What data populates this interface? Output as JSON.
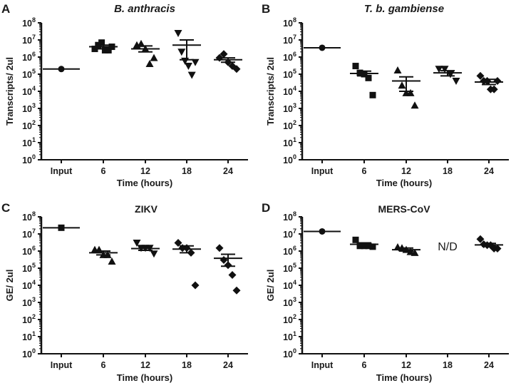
{
  "chart_data": [
    {
      "type": "scatter",
      "panel": "A",
      "title": "B. anthracis",
      "title_italic": true,
      "ylabel": "Transcripts/ 2ul",
      "xlabel": "Time (hours)",
      "categories": [
        "Input",
        "6",
        "12",
        "18",
        "24"
      ],
      "yscale": "log",
      "ylim": [
        1,
        100000000
      ],
      "yticks": [
        {
          "base": "10",
          "exp": "0"
        },
        {
          "base": "10",
          "exp": "1"
        },
        {
          "base": "10",
          "exp": "2"
        },
        {
          "base": "10",
          "exp": "3"
        },
        {
          "base": "10",
          "exp": "4"
        },
        {
          "base": "10",
          "exp": "5"
        },
        {
          "base": "10",
          "exp": "6"
        },
        {
          "base": "10",
          "exp": "7"
        },
        {
          "base": "10",
          "exp": "8"
        }
      ],
      "groups": [
        {
          "category": "Input",
          "marker": "circle",
          "points": [
            200000
          ],
          "mean": 200000,
          "sem": null
        },
        {
          "category": "6",
          "marker": "square",
          "points": [
            3000000,
            5000000,
            7000000,
            2500000,
            2500000,
            4000000
          ],
          "mean": 4000000,
          "sem": [
            3000000,
            5000000
          ]
        },
        {
          "category": "12",
          "marker": "triangle-up",
          "points": [
            5000000,
            6000000,
            3000000,
            400000,
            900000
          ],
          "mean": 3000000,
          "sem": [
            2000000,
            4500000
          ]
        },
        {
          "category": "18",
          "marker": "triangle-down",
          "points": [
            25000000,
            2000000,
            600000,
            300000,
            90000,
            500000
          ],
          "mean": 5000000,
          "sem": [
            700000,
            10000000
          ]
        },
        {
          "category": "24",
          "marker": "diamond",
          "points": [
            900000,
            1500000,
            500000,
            300000,
            200000
          ],
          "mean": 700000,
          "sem": [
            500000,
            900000
          ]
        }
      ],
      "annotations": []
    },
    {
      "type": "scatter",
      "panel": "B",
      "title": "T. b. gambiense",
      "title_italic": true,
      "ylabel": "Transcripts/ 2ul",
      "xlabel": "Time (hours)",
      "categories": [
        "Input",
        "6",
        "12",
        "18",
        "24"
      ],
      "yscale": "log",
      "ylim": [
        1,
        100000000
      ],
      "yticks": [
        {
          "base": "10",
          "exp": "0"
        },
        {
          "base": "10",
          "exp": "1"
        },
        {
          "base": "10",
          "exp": "2"
        },
        {
          "base": "10",
          "exp": "3"
        },
        {
          "base": "10",
          "exp": "4"
        },
        {
          "base": "10",
          "exp": "5"
        },
        {
          "base": "10",
          "exp": "6"
        },
        {
          "base": "10",
          "exp": "7"
        },
        {
          "base": "10",
          "exp": "8"
        }
      ],
      "groups": [
        {
          "category": "Input",
          "marker": "circle",
          "points": [
            3500000
          ],
          "mean": 3500000,
          "sem": null
        },
        {
          "category": "6",
          "marker": "square",
          "points": [
            300000,
            120000,
            100000,
            60000,
            6000
          ],
          "mean": 110000,
          "sem": [
            80000,
            150000
          ]
        },
        {
          "category": "12",
          "marker": "triangle-up",
          "points": [
            170000,
            22000,
            8000,
            8000,
            1500
          ],
          "mean": 40000,
          "sem": [
            10000,
            70000
          ]
        },
        {
          "category": "18",
          "marker": "triangle-down",
          "points": [
            200000,
            200000,
            100000,
            40000
          ],
          "mean": 120000,
          "sem": [
            80000,
            160000
          ]
        },
        {
          "category": "24",
          "marker": "diamond",
          "points": [
            80000,
            40000,
            40000,
            13000,
            13000,
            40000
          ],
          "mean": 35000,
          "sem": [
            25000,
            50000
          ]
        }
      ],
      "annotations": []
    },
    {
      "type": "scatter",
      "panel": "C",
      "title": "ZIKV",
      "title_italic": false,
      "ylabel": "GE/ 2ul",
      "xlabel": "Time (hours)",
      "categories": [
        "Input",
        "6",
        "12",
        "18",
        "24"
      ],
      "yscale": "log",
      "ylim": [
        1,
        100000000
      ],
      "yticks": [
        {
          "base": "10",
          "exp": "0"
        },
        {
          "base": "10",
          "exp": "1"
        },
        {
          "base": "10",
          "exp": "2"
        },
        {
          "base": "10",
          "exp": "3"
        },
        {
          "base": "10",
          "exp": "4"
        },
        {
          "base": "10",
          "exp": "5"
        },
        {
          "base": "10",
          "exp": "6"
        },
        {
          "base": "10",
          "exp": "7"
        },
        {
          "base": "10",
          "exp": "8"
        }
      ],
      "groups": [
        {
          "category": "Input",
          "marker": "square",
          "points": [
            23000000
          ],
          "mean": 23000000,
          "sem": null
        },
        {
          "category": "6",
          "marker": "triangle-up",
          "points": [
            1200000,
            1200000,
            600000,
            600000,
            250000
          ],
          "mean": 800000,
          "sem": [
            600000,
            1000000
          ]
        },
        {
          "category": "12",
          "marker": "triangle-down",
          "points": [
            3000000,
            1500000,
            1500000,
            1500000,
            700000
          ],
          "mean": 1400000,
          "sem": [
            1100000,
            1800000
          ]
        },
        {
          "category": "18",
          "marker": "diamond",
          "points": [
            3000000,
            1500000,
            1500000,
            800000,
            10000
          ],
          "mean": 1300000,
          "sem": [
            800000,
            2000000
          ]
        },
        {
          "category": "24",
          "marker": "diamond",
          "points": [
            1500000,
            300000,
            150000,
            40000,
            5000
          ],
          "mean": 380000,
          "sem": [
            130000,
            650000
          ]
        }
      ],
      "annotations": []
    },
    {
      "type": "scatter",
      "panel": "D",
      "title": "MERS-CoV",
      "title_italic": false,
      "ylabel": "GE/ 2ul",
      "xlabel": "Time (hours)",
      "categories": [
        "Input",
        "6",
        "12",
        "18",
        "24"
      ],
      "yscale": "log",
      "ylim": [
        1,
        100000000
      ],
      "yticks": [
        {
          "base": "10",
          "exp": "0"
        },
        {
          "base": "10",
          "exp": "1"
        },
        {
          "base": "10",
          "exp": "2"
        },
        {
          "base": "10",
          "exp": "3"
        },
        {
          "base": "10",
          "exp": "4"
        },
        {
          "base": "10",
          "exp": "5"
        },
        {
          "base": "10",
          "exp": "6"
        },
        {
          "base": "10",
          "exp": "7"
        },
        {
          "base": "10",
          "exp": "8"
        }
      ],
      "groups": [
        {
          "category": "Input",
          "marker": "circle",
          "points": [
            14000000
          ],
          "mean": 14000000,
          "sem": null
        },
        {
          "category": "6",
          "marker": "square",
          "points": [
            4500000,
            2000000,
            2000000,
            2000000,
            1800000
          ],
          "mean": 2500000,
          "sem": [
            2000000,
            3000000
          ]
        },
        {
          "category": "12",
          "marker": "triangle-up",
          "points": [
            1700000,
            1500000,
            1200000,
            900000,
            800000
          ],
          "mean": 1200000,
          "sem": [
            1000000,
            1500000
          ]
        },
        {
          "category": "24",
          "marker": "diamond",
          "points": [
            5000000,
            2500000,
            2200000,
            2200000,
            1400000,
            1400000
          ],
          "mean": 2300000,
          "sem": [
            1900000,
            2800000
          ]
        }
      ],
      "annotations": [
        {
          "category": "18",
          "value": 2000000,
          "text": "N/D"
        }
      ]
    }
  ]
}
